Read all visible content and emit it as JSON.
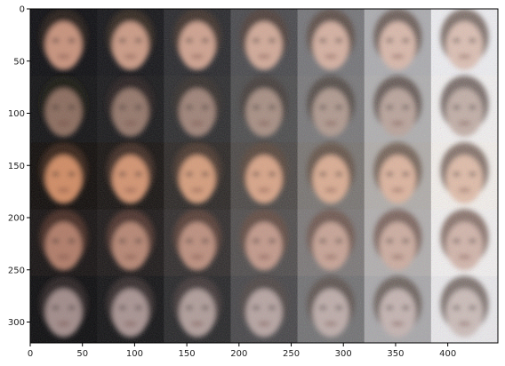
{
  "figure": {
    "type": "image-grid",
    "rows": 5,
    "cols": 7,
    "x_ticks": [
      "0",
      "50",
      "100",
      "150",
      "200",
      "250",
      "300",
      "350",
      "400"
    ],
    "y_ticks": [
      "0",
      "50",
      "100",
      "150",
      "200",
      "250",
      "300"
    ],
    "x_tick_values": [
      0,
      50,
      100,
      150,
      200,
      250,
      300,
      350,
      400
    ],
    "y_tick_values": [
      0,
      50,
      100,
      150,
      200,
      250,
      300
    ],
    "x_range": [
      0,
      448
    ],
    "y_range": [
      0,
      320
    ],
    "row_tones": [
      {
        "skin": "#c7917a",
        "hair": "#2a1c14",
        "bg_start": "#0c0c10",
        "bg_end": "#f0f0f4"
      },
      {
        "skin": "#8a6a5c",
        "hair": "#1a1412",
        "bg_start": "#101012",
        "bg_end": "#f4f2f2"
      },
      {
        "skin": "#d08a62",
        "hair": "#3a2416",
        "bg_start": "#0e0a08",
        "bg_end": "#f6f2ee"
      },
      {
        "skin": "#b07a66",
        "hair": "#4a2c22",
        "bg_start": "#141010",
        "bg_end": "#f4f2f2"
      },
      {
        "skin": "#a08a88",
        "hair": "#2c2424",
        "bg_start": "#0a0a0c",
        "bg_end": "#ecebee"
      }
    ]
  }
}
